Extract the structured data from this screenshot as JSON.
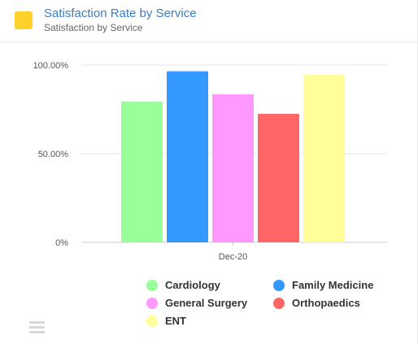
{
  "header": {
    "title": "Satisfaction Rate by Service",
    "subtitle": "Satisfaction by Service",
    "icon_color": "#ffd02a"
  },
  "chart_data": {
    "type": "bar",
    "categories": [
      "Dec-20"
    ],
    "series": [
      {
        "name": "Cardiology",
        "values": [
          79.5
        ],
        "color": "#99ff99"
      },
      {
        "name": "Family Medicine",
        "values": [
          96.5
        ],
        "color": "#3399ff"
      },
      {
        "name": "General Surgery",
        "values": [
          83.5
        ],
        "color": "#ff99ff"
      },
      {
        "name": "Orthopaedics",
        "values": [
          72.5
        ],
        "color": "#ff6666"
      },
      {
        "name": "ENT",
        "values": [
          94.5
        ],
        "color": "#ffff99"
      }
    ],
    "yticks": [
      "0%",
      "50.00%",
      "100.00%"
    ],
    "ylim": [
      0,
      100
    ],
    "grid": true,
    "legend": "bottom"
  },
  "menu": {
    "icon": "hamburger-menu-icon"
  }
}
